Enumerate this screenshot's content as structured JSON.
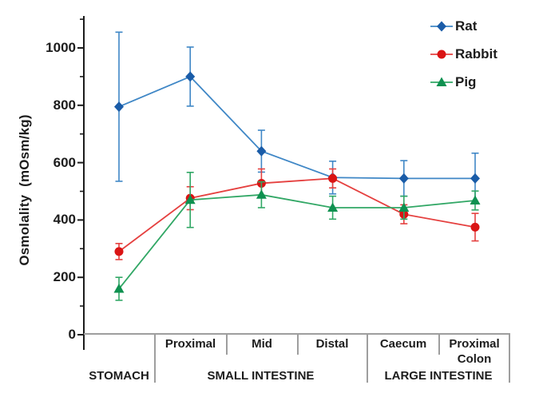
{
  "figure": {
    "background": "#ffffff",
    "text_color": "#1c1c1c",
    "axis_color": "#1c1c1c",
    "table_line_color": "#9e9e9e",
    "ylabel": "Osmolality  (mOsm/kg)"
  },
  "chart_data": {
    "type": "line",
    "title": "",
    "xlabel": "",
    "ylabel": "Osmolality (mOsm/kg)",
    "ylim": [
      0,
      1100
    ],
    "y_axis": {
      "min": 0,
      "max": 1000,
      "major_step": 200,
      "minor_step": 100,
      "minor_max": 1100,
      "tick_labels": [
        "0",
        "200",
        "400",
        "600",
        "800",
        "1000"
      ]
    },
    "grid": false,
    "legend_position": "top-right",
    "categories": [
      "Stomach",
      "Proximal",
      "Mid",
      "Distal",
      "Caecum",
      "Proximal Colon"
    ],
    "series": [
      {
        "name": "Rat",
        "marker": "diamond",
        "line_color": "#3f87c6",
        "marker_color": "#1a5ca8",
        "values": [
          795,
          900,
          640,
          548,
          545,
          545
        ],
        "error": [
          260,
          103,
          73,
          57,
          62,
          88
        ]
      },
      {
        "name": "Rabbit",
        "marker": "circle",
        "line_color": "#e5403f",
        "marker_color": "#da1414",
        "values": [
          290,
          476,
          528,
          545,
          420,
          375
        ],
        "error": [
          28,
          40,
          50,
          33,
          33,
          48
        ]
      },
      {
        "name": "Pig",
        "marker": "triangle",
        "line_color": "#31a765",
        "marker_color": "#0f9150",
        "values": [
          160,
          470,
          488,
          443,
          443,
          468
        ],
        "error": [
          40,
          96,
          45,
          40,
          40,
          33
        ]
      }
    ],
    "x_table": {
      "proximal": "Proximal",
      "mid": "Mid",
      "distal": "Distal",
      "caecum": "Caecum",
      "proximal_colon": "Proximal\nColon",
      "stomach": "STOMACH",
      "small_intestine": "SMALL INTESTINE",
      "large_intestine": "LARGE INTESTINE"
    }
  }
}
